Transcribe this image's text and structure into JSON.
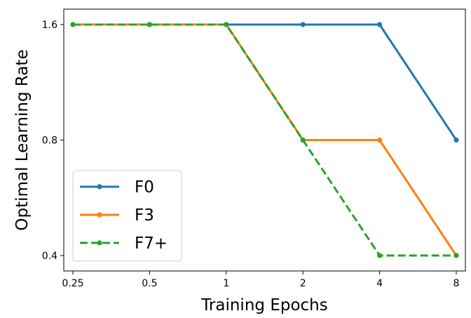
{
  "chart_data": {
    "type": "line",
    "title": "",
    "xlabel": "Training Epochs",
    "ylabel": "Optimal Learning Rate",
    "x_scale": "log2",
    "y_scale": "log2",
    "categories": [
      "0.25",
      "0.5",
      "1",
      "2",
      "4",
      "8"
    ],
    "x": [
      0.25,
      0.5,
      1,
      2,
      4,
      8
    ],
    "yticks": [
      0.4,
      0.8,
      1.6
    ],
    "ytick_labels": [
      "0.4",
      "0.8",
      "1.6"
    ],
    "series": [
      {
        "name": "F0",
        "color": "#1f77b4",
        "dash": "solid",
        "values": [
          1.6,
          1.6,
          1.6,
          1.6,
          1.6,
          0.8
        ]
      },
      {
        "name": "F3",
        "color": "#ff7f0e",
        "dash": "solid",
        "values": [
          1.6,
          1.6,
          1.6,
          0.8,
          0.8,
          0.4
        ]
      },
      {
        "name": "F7+",
        "color": "#2ca02c",
        "dash": "dashed",
        "values": [
          1.6,
          1.6,
          1.6,
          0.8,
          0.4,
          0.4
        ]
      }
    ],
    "legend_position": "lower-left",
    "grid": false
  }
}
